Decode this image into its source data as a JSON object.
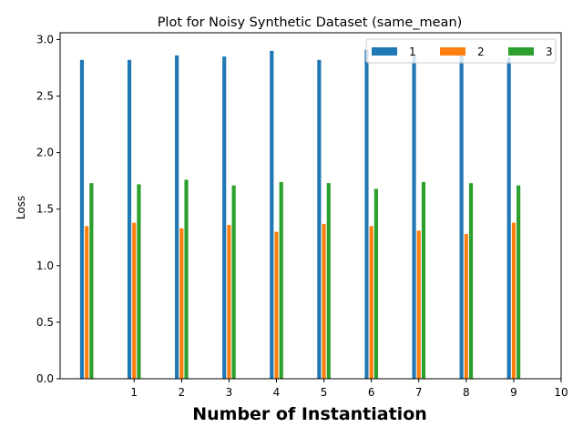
{
  "chart_data": {
    "type": "bar",
    "title": "Plot for Noisy Synthetic Dataset (same_mean)",
    "xlabel": "Number of Instantiation",
    "ylabel": "Loss",
    "x_ticks": [
      "1",
      "2",
      "3",
      "4",
      "5",
      "6",
      "7",
      "8",
      "9",
      "10"
    ],
    "y_ticks": [
      "0.0",
      "0.5",
      "1.0",
      "1.5",
      "2.0",
      "2.5",
      "3.0"
    ],
    "ylim": [
      0,
      3.06
    ],
    "grid": false,
    "legend_position": "top-right",
    "categories": [
      0,
      1,
      2,
      3,
      4,
      5,
      6,
      7,
      8,
      9
    ],
    "series": [
      {
        "name": "1",
        "color": "#1f77b4",
        "values": [
          2.82,
          2.82,
          2.86,
          2.85,
          2.9,
          2.82,
          2.91,
          2.87,
          2.87,
          2.84
        ]
      },
      {
        "name": "2",
        "color": "#ff7f0e",
        "values": [
          1.35,
          1.38,
          1.33,
          1.36,
          1.3,
          1.37,
          1.35,
          1.31,
          1.28,
          1.38
        ]
      },
      {
        "name": "3",
        "color": "#2ca02c",
        "values": [
          1.73,
          1.72,
          1.76,
          1.71,
          1.74,
          1.73,
          1.68,
          1.74,
          1.73,
          1.71
        ]
      }
    ]
  }
}
